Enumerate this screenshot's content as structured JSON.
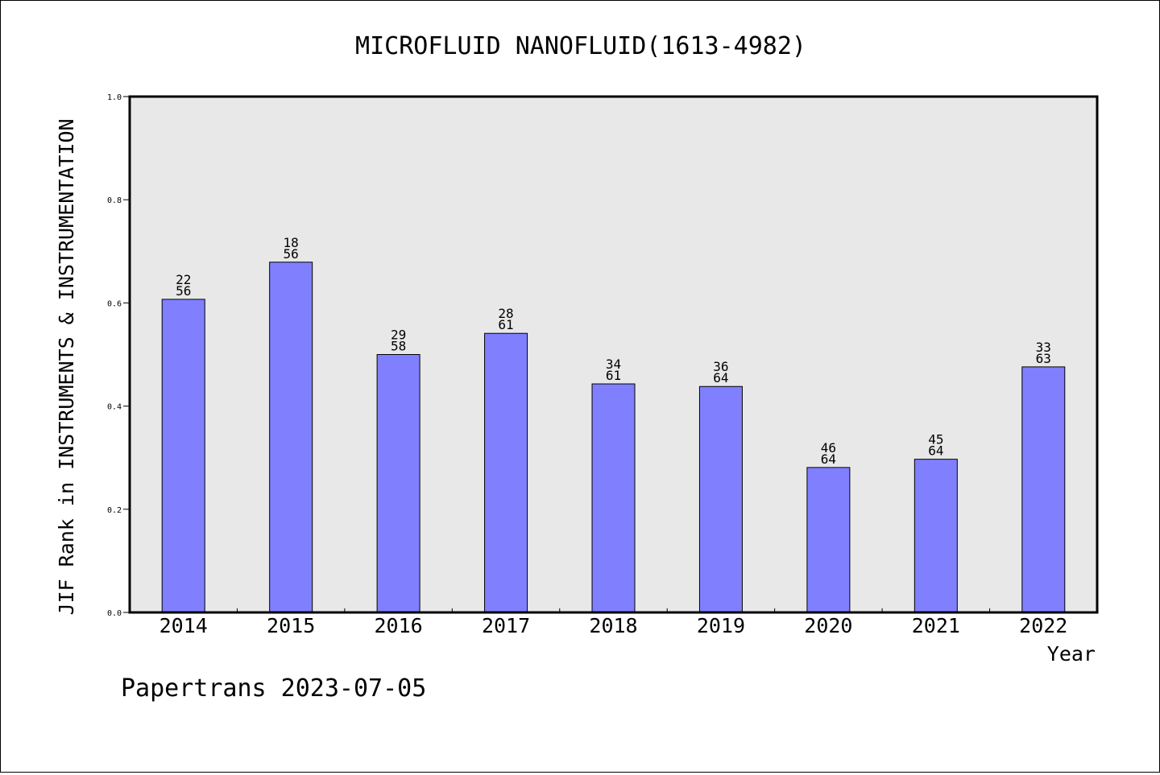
{
  "chart_data": {
    "type": "bar",
    "title": "MICROFLUID NANOFLUID(1613-4982)",
    "xlabel": "Year",
    "ylabel": "JIF Rank in INSTRUMENTS & INSTRUMENTATION",
    "ylim": [
      0,
      1.0
    ],
    "yticks": [
      {
        "value": 0.0,
        "label": "0.0"
      },
      {
        "value": 0.2,
        "label": "0.2"
      },
      {
        "value": 0.4,
        "label": "0.4"
      },
      {
        "value": 0.6,
        "label": "0.6"
      },
      {
        "value": 0.8,
        "label": "0.8"
      },
      {
        "value": 1.0,
        "label": "1.0"
      }
    ],
    "categories": [
      "2014",
      "2015",
      "2016",
      "2017",
      "2018",
      "2019",
      "2020",
      "2021",
      "2022"
    ],
    "values": [
      0.607,
      0.679,
      0.5,
      0.541,
      0.443,
      0.438,
      0.281,
      0.297,
      0.476
    ],
    "rank": [
      "22",
      "18",
      "29",
      "28",
      "34",
      "36",
      "46",
      "45",
      "33"
    ],
    "total": [
      "56",
      "56",
      "58",
      "61",
      "61",
      "64",
      "64",
      "64",
      "63"
    ],
    "grid": false,
    "colors": {
      "bar": "#8080ff",
      "plot_background": "#e8e8e8"
    }
  },
  "footer": "Papertrans 2023-07-05"
}
